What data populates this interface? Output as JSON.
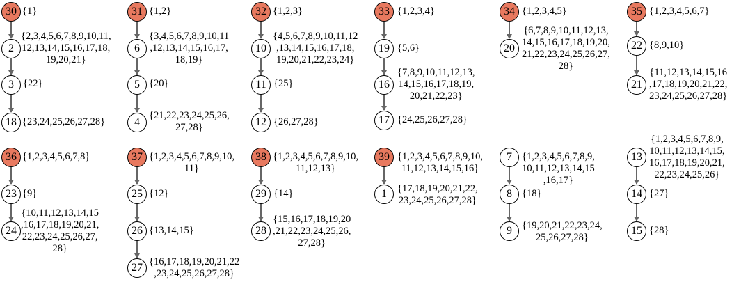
{
  "trees": [
    {
      "nodes": [
        {
          "id": "30",
          "root": true,
          "set": "{1}"
        },
        {
          "id": "2",
          "root": false,
          "set": "{2,3,4,5,6,7,8,9,10,11,\n12,13,14,15,16,17,18,\n19,20,21}"
        },
        {
          "id": "3",
          "root": false,
          "set": "{22}"
        },
        {
          "id": "18",
          "root": false,
          "set": "{23,24,25,26,27,28}"
        }
      ]
    },
    {
      "nodes": [
        {
          "id": "31",
          "root": true,
          "set": "{1,2}"
        },
        {
          "id": "6",
          "root": false,
          "set": "{3,4,5,6,7,8,9,10,11\n,12,13,14,15,16,17,\n18,19}"
        },
        {
          "id": "5",
          "root": false,
          "set": "{20}"
        },
        {
          "id": "4",
          "root": false,
          "set": "{21,22,23,24,25,26,\n27,28}"
        }
      ]
    },
    {
      "nodes": [
        {
          "id": "32",
          "root": true,
          "set": "{1,2,3}"
        },
        {
          "id": "10",
          "root": false,
          "set": "{4,5,6,7,8,9,10,11,12\n,13,14,15,16,17,18,\n19,20,21,22,23,24}"
        },
        {
          "id": "11",
          "root": false,
          "set": "{25}"
        },
        {
          "id": "12",
          "root": false,
          "set": "{26,27,28}"
        }
      ]
    },
    {
      "nodes": [
        {
          "id": "33",
          "root": true,
          "set": "{1,2,3,4}"
        },
        {
          "id": "19",
          "root": false,
          "set": "{5,6}"
        },
        {
          "id": "16",
          "root": false,
          "set": "{7,8,9,10,11,12,13,\n14,15,16,17,18,19,\n20,21,22,23}"
        },
        {
          "id": "17",
          "root": false,
          "set": "{24,25,26,27,28}"
        }
      ]
    },
    {
      "nodes": [
        {
          "id": "34",
          "root": true,
          "set": "{1,2,3,4,5}"
        },
        {
          "id": "20",
          "root": false,
          "set": "{6,7,8,9,10,11,12,13,\n14,15,16,17,18,19,20,\n21,22,23,24,25,26,27,\n28}"
        }
      ]
    },
    {
      "nodes": [
        {
          "id": "35",
          "root": true,
          "set": "{1,2,3,4,5,6,7}"
        },
        {
          "id": "22",
          "root": false,
          "set": "{8,9,10}"
        },
        {
          "id": "21",
          "root": false,
          "set": "{11,12,13,14,15,16\n,17,18,19,20,21,22,\n23,24,25,26,27,28}"
        }
      ]
    },
    {
      "nodes": [
        {
          "id": "36",
          "root": true,
          "set": "{1,2,3,4,5,6,7,8}"
        },
        {
          "id": "23",
          "root": false,
          "set": "{9}"
        },
        {
          "id": "24",
          "root": false,
          "set": "{10,11,12,13,14,15\n,16,17,18,19,20,21,\n22,23,24,25,26,27,\n28}"
        }
      ]
    },
    {
      "nodes": [
        {
          "id": "37",
          "root": true,
          "set": "{1,2,3,4,5,6,7,8,9,10,\n11}"
        },
        {
          "id": "25",
          "root": false,
          "set": "{12}"
        },
        {
          "id": "26",
          "root": false,
          "set": "{13,14,15}"
        },
        {
          "id": "27",
          "root": false,
          "set": "{16,17,18,19,20,21,22\n,23,24,25,26,27,28}"
        }
      ]
    },
    {
      "nodes": [
        {
          "id": "38",
          "root": true,
          "set": "{1,2,3,4,5,6,7,8,9,10,\n11,12,13}"
        },
        {
          "id": "29",
          "root": false,
          "set": "{14}"
        },
        {
          "id": "28",
          "root": false,
          "set": "{15,16,17,18,19,20\n,21,22,23,24,25,26,\n27,28}"
        }
      ]
    },
    {
      "nodes": [
        {
          "id": "39",
          "root": true,
          "set": "{1,2,3,4,5,6,7,8,9,10,\n11,12,13,14,15,16}"
        },
        {
          "id": "1",
          "root": false,
          "set": "{17,18,19,20,21,22,\n23,24,25,26,27,28}"
        }
      ]
    },
    {
      "nodes": [
        {
          "id": "7",
          "root": false,
          "set": "{1,2,3,4,5,6,7,8,9,\n10,11,12,13,14,15\n,16,17}"
        },
        {
          "id": "8",
          "root": false,
          "set": "{18}"
        },
        {
          "id": "9",
          "root": false,
          "set": "{19,20,21,22,23,24,\n25,26,27,28}"
        }
      ]
    },
    {
      "nodes": [
        {
          "id": "13",
          "root": false,
          "set": "{1,2,3,4,5,6,7,8,9,\n10,11,12,13,14,15,\n16,17,18,19,20,21,\n22,23,24,25,26}"
        },
        {
          "id": "14",
          "root": false,
          "set": "{27}"
        },
        {
          "id": "15",
          "root": false,
          "set": "{28}"
        }
      ]
    }
  ],
  "colors": {
    "root_fill": "#e8795f",
    "node_stroke": "#000000",
    "arrow": "#666666"
  }
}
